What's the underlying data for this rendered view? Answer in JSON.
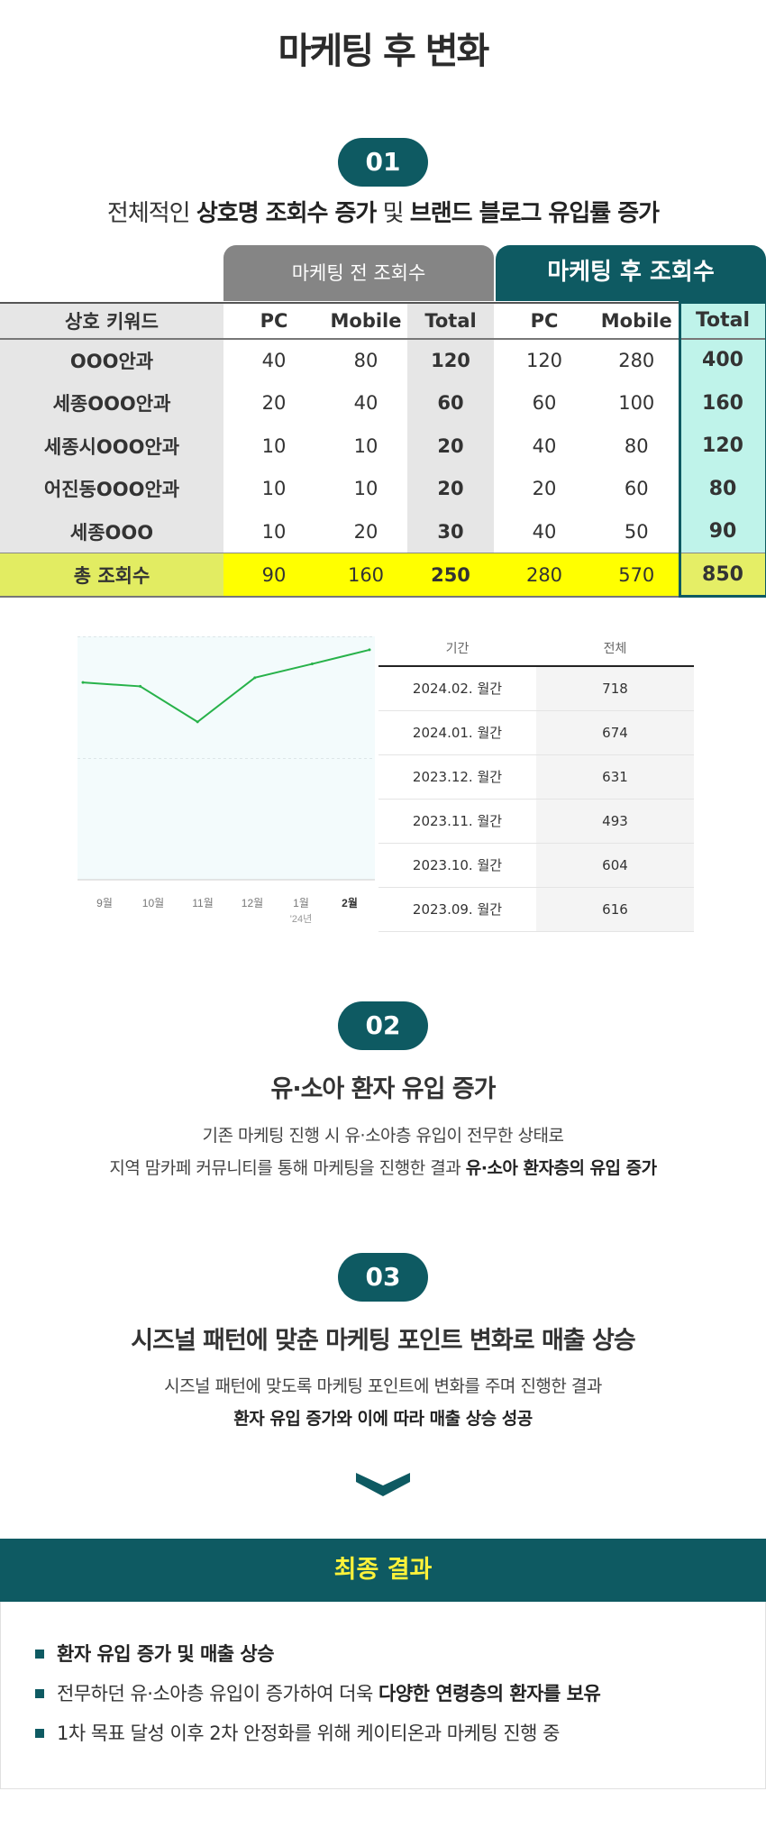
{
  "title": "마케팅 후 변화",
  "section1": {
    "number": "01",
    "lead_prefix": "전체적인 ",
    "lead_bold1": "상호명 조회수 증가",
    "lead_mid": " 및 ",
    "lead_bold2": "브랜드 블로그 유입률 증가"
  },
  "table": {
    "tab_before": "마케팅 전 조회수",
    "tab_after": "마케팅 후 조회수",
    "headers": [
      "상호 키워드",
      "PC",
      "Mobile",
      "Total",
      "PC",
      "Mobile",
      "Total"
    ],
    "rows": [
      [
        "OOO안과",
        "40",
        "80",
        "120",
        "120",
        "280",
        "400"
      ],
      [
        "세종OOO안과",
        "20",
        "40",
        "60",
        "60",
        "100",
        "160"
      ],
      [
        "세종시OOO안과",
        "10",
        "10",
        "20",
        "40",
        "80",
        "120"
      ],
      [
        "어진동OOO안과",
        "10",
        "10",
        "20",
        "20",
        "60",
        "80"
      ],
      [
        "세종OOO",
        "10",
        "20",
        "30",
        "40",
        "50",
        "90"
      ]
    ],
    "sum": [
      "총 조회수",
      "90",
      "160",
      "250",
      "280",
      "570",
      "850"
    ]
  },
  "chart_data": {
    "type": "line",
    "categories": [
      "9월",
      "10월",
      "11월",
      "12월",
      "1월",
      "2월"
    ],
    "year_note": "'24년",
    "values": [
      616,
      604,
      493,
      631,
      674,
      718
    ],
    "ylim": [
      0,
      760
    ],
    "line_color": "#27b24a",
    "title": "",
    "xlabel": "",
    "ylabel": ""
  },
  "data_table": {
    "headers": [
      "기간",
      "전체"
    ],
    "rows": [
      [
        "2024.02. 월간",
        "718"
      ],
      [
        "2024.01. 월간",
        "674"
      ],
      [
        "2023.12. 월간",
        "631"
      ],
      [
        "2023.11. 월간",
        "493"
      ],
      [
        "2023.10. 월간",
        "604"
      ],
      [
        "2023.09. 월간",
        "616"
      ]
    ]
  },
  "section2": {
    "number": "02",
    "title": "유·소아 환자 유입 증가",
    "line1": "기존 마케팅 진행 시 유·소아층 유입이 전무한 상태로",
    "line2_prefix": "지역 맘카페 커뮤니티를 통해 마케팅을 진행한 결과 ",
    "line2_bold": "유·소아 환자층의 유입 증가"
  },
  "section3": {
    "number": "03",
    "title": "시즈널 패턴에 맞춘 마케팅 포인트 변화로 매출 상승",
    "line1": "시즈널 패턴에 맞도록 마케팅 포인트에 변화를 주며 진행한 결과",
    "line2_bold": "환자 유입 증가와 이에 따라 매출 상승 성공"
  },
  "final": {
    "heading": "최종 결과",
    "item1_bold": "환자 유입 증가 및 매출 상승",
    "item2_prefix": "전무하던 유·소아층 유입이 증가하여 더욱 ",
    "item2_bold": "다양한 연령층의 환자를 보유",
    "item3": "1차 목표 달성 이후 2차 안정화를 위해 케이티온과 마케팅 진행 중"
  },
  "colors": {
    "teal": "#0e5a62",
    "yellow_highlight": "#ffff00",
    "mint": "#bff3ea",
    "final_heading": "#fdf23a"
  }
}
